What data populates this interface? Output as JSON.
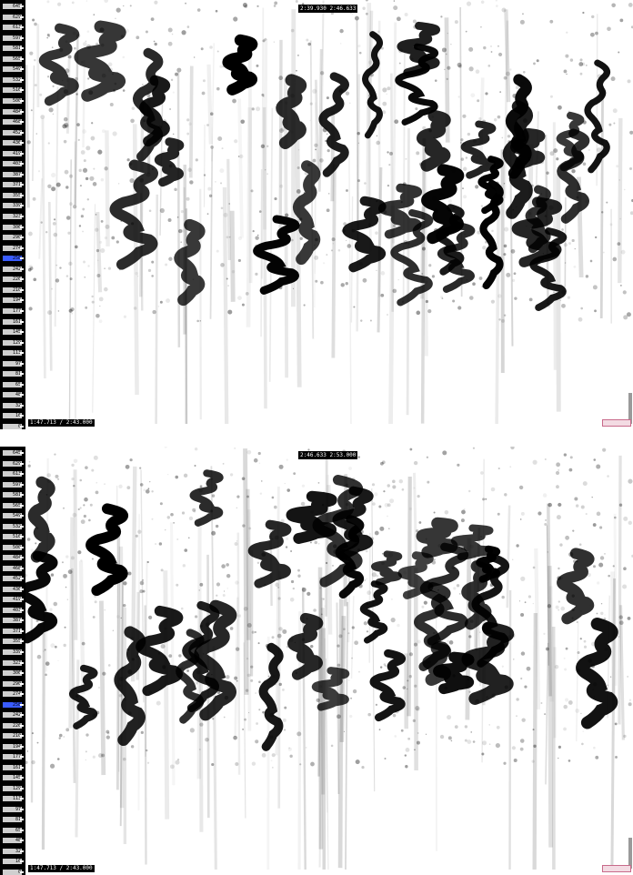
{
  "ruler_ticks": [
    "645",
    "629",
    "613",
    "597",
    "581",
    "565",
    "549",
    "532",
    "516",
    "500",
    "484",
    "468",
    "452",
    "436",
    "419",
    "403",
    "387",
    "371",
    "355",
    "339",
    "323",
    "306",
    "290",
    "274",
    "258",
    "242",
    "226",
    "210",
    "194",
    "177",
    "161",
    "145",
    "129",
    "113",
    "97",
    "81",
    "65",
    "48",
    "32",
    "16",
    "0"
  ],
  "panels": [
    {
      "id": "top",
      "center_label": "2:39.930   2:46.633",
      "corner_label": "1:47.713 / 2:43.000"
    },
    {
      "id": "bottom",
      "center_label": "2:46.633   2:53.000",
      "corner_label": "1:47.713 / 2:43.000"
    }
  ],
  "colors": {
    "ruler": "#000000",
    "highlight": "#3a5cff",
    "ink": "#000000",
    "paper": "#ffffff"
  },
  "icons": {
    "zoom": "zoom-box-icon",
    "scroll": "scrollbar-stub-icon"
  }
}
